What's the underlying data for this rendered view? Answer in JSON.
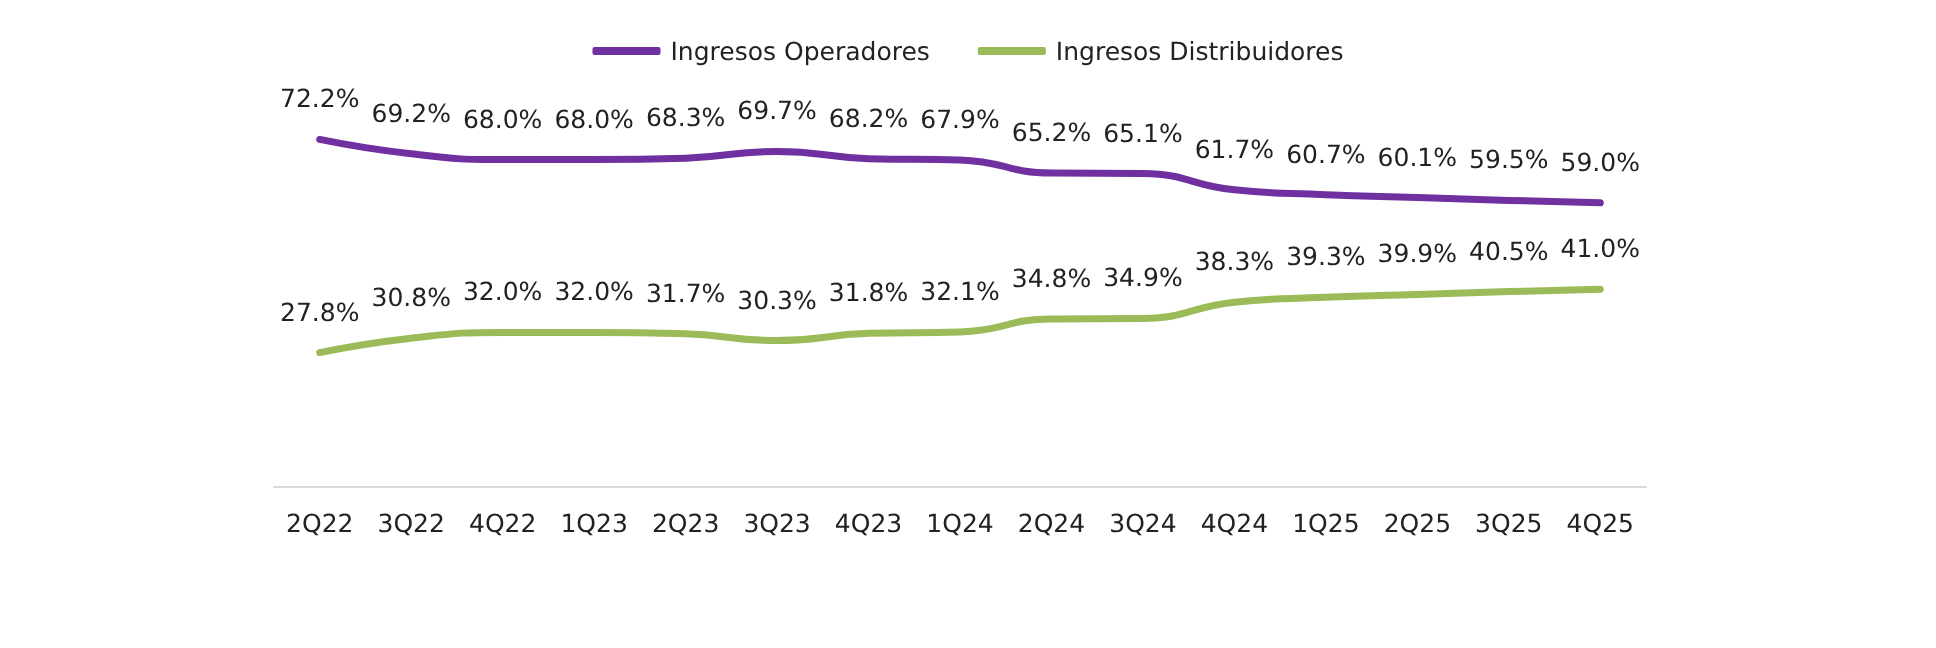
{
  "chart_data": {
    "type": "line",
    "categories": [
      "2Q22",
      "3Q22",
      "4Q22",
      "1Q23",
      "2Q23",
      "3Q23",
      "4Q23",
      "1Q24",
      "2Q24",
      "3Q24",
      "4Q24",
      "1Q25",
      "2Q25",
      "3Q25",
      "4Q25"
    ],
    "series": [
      {
        "name": "Ingresos Operadores",
        "color": "#7030a0",
        "values": [
          72.2,
          69.2,
          68.0,
          68.0,
          68.3,
          69.7,
          68.2,
          67.9,
          65.2,
          65.1,
          61.7,
          60.7,
          60.1,
          59.5,
          59.0
        ],
        "value_labels": [
          "72.2%",
          "69.2%",
          "68.0%",
          "68.0%",
          "68.3%",
          "69.7%",
          "68.2%",
          "67.9%",
          "65.2%",
          "65.1%",
          "61.7%",
          "60.7%",
          "60.1%",
          "59.5%",
          "59.0%"
        ]
      },
      {
        "name": "Ingresos Distribuidores",
        "color": "#9bbb59",
        "values": [
          27.8,
          30.8,
          32.0,
          32.0,
          31.7,
          30.3,
          31.8,
          32.1,
          34.8,
          34.9,
          38.3,
          39.3,
          39.9,
          40.5,
          41.0
        ],
        "value_labels": [
          "27.8%",
          "30.8%",
          "32.0%",
          "32.0%",
          "31.7%",
          "30.3%",
          "31.8%",
          "32.1%",
          "34.8%",
          "34.9%",
          "38.3%",
          "39.3%",
          "39.9%",
          "40.5%",
          "41.0%"
        ]
      }
    ],
    "tick_labels": "x",
    "grid": false,
    "legend": "top",
    "marker": "none",
    "line_style": "solid"
  }
}
